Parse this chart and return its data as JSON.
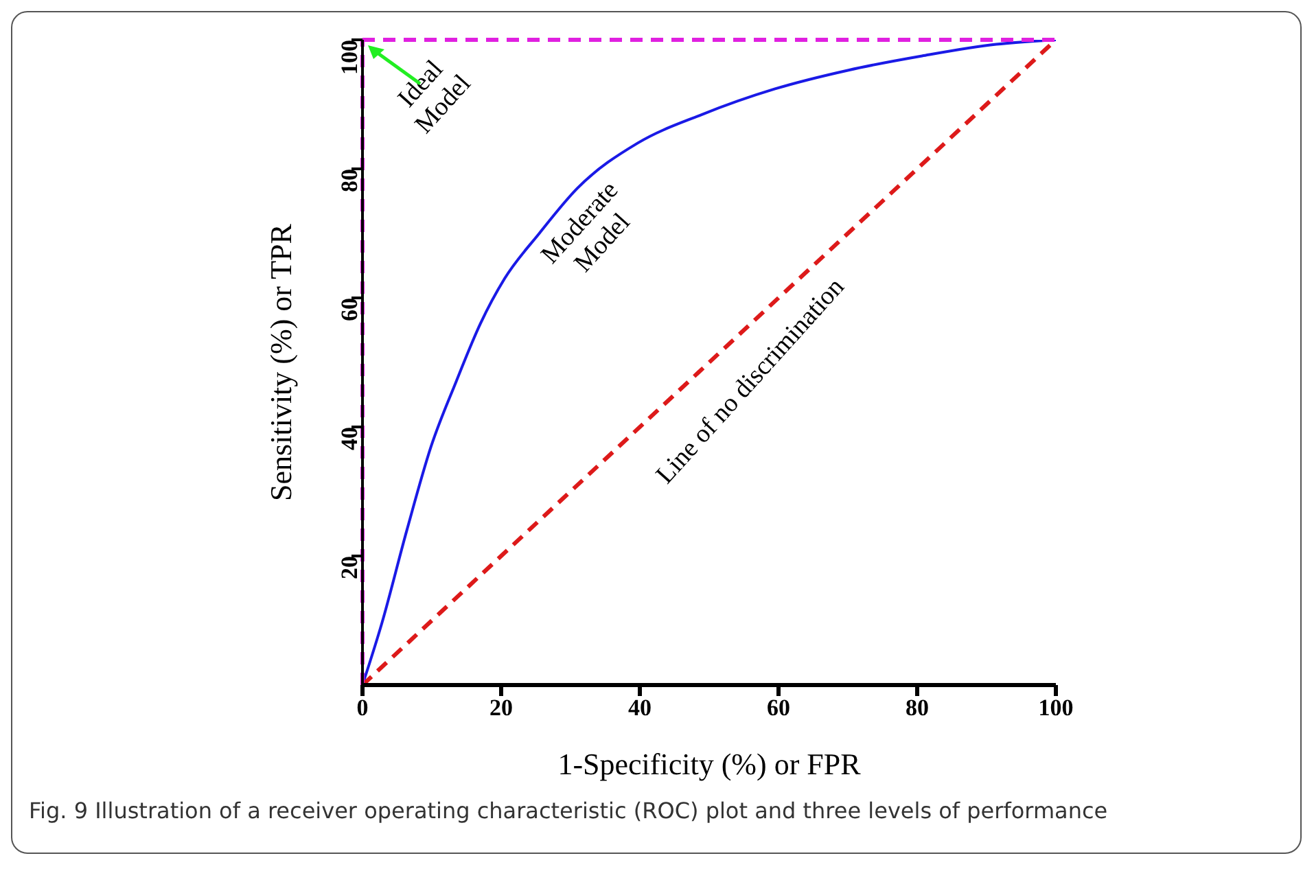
{
  "chart_data": {
    "type": "line",
    "xlabel": "1-Specificity (%) or FPR",
    "ylabel": "Sensitivity (%) or TPR",
    "xlim": [
      0,
      100
    ],
    "ylim": [
      0,
      100
    ],
    "xticks": [
      0,
      20,
      40,
      60,
      80,
      100
    ],
    "yticks": [
      20,
      40,
      60,
      80,
      100
    ],
    "marker": "none",
    "series": [
      {
        "name": "Moderate Model",
        "color": "#1a1ae6",
        "line_style": "solid",
        "x": [
          0,
          2.8,
          6.4,
          9.9,
          13.5,
          17,
          20.5,
          25.5,
          31,
          39.7,
          48.9,
          59.5,
          70.1,
          80.7,
          91.4,
          100
        ],
        "values": [
          0,
          9.6,
          24,
          37,
          47,
          56,
          63,
          70,
          77,
          84,
          88.4,
          92.4,
          95.3,
          97.5,
          99.3,
          100
        ]
      },
      {
        "name": "Line of no discrimination",
        "color": "#dd1a1a",
        "line_style": "dashed",
        "x": [
          0,
          100
        ],
        "values": [
          0,
          100
        ]
      }
    ],
    "ref_lines": [
      {
        "axis": "x",
        "value": 0,
        "color": "#e020e0",
        "line_style": "dashed"
      },
      {
        "axis": "y",
        "value": 100,
        "label": "Ideal Model",
        "color": "#e020e0",
        "line_style": "dashed"
      }
    ],
    "annotations": [
      "Fig. 9 Illustration of a receiver operating characteristic (ROC) plot and three levels of performance"
    ]
  }
}
